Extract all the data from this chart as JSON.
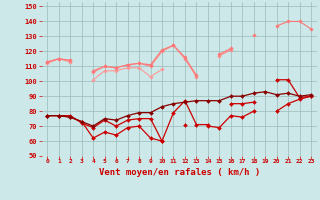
{
  "x": [
    0,
    1,
    2,
    3,
    4,
    5,
    6,
    7,
    8,
    9,
    10,
    11,
    12,
    13,
    14,
    15,
    16,
    17,
    18,
    19,
    20,
    21,
    22,
    23
  ],
  "line1": [
    112,
    115,
    114,
    null,
    101,
    107,
    107,
    109,
    109,
    103,
    108,
    null,
    null,
    null,
    null,
    null,
    null,
    null,
    null,
    null,
    null,
    null,
    null,
    null
  ],
  "line2": [
    113,
    115,
    113,
    null,
    106,
    110,
    109,
    111,
    112,
    110,
    120,
    124,
    115,
    103,
    null,
    117,
    121,
    null,
    null,
    null,
    null,
    null,
    null,
    null
  ],
  "line3": [
    113,
    115,
    114,
    null,
    107,
    110,
    109,
    111,
    112,
    111,
    121,
    124,
    116,
    104,
    null,
    118,
    122,
    null,
    131,
    null,
    137,
    140,
    140,
    135
  ],
  "line4": [
    77,
    77,
    77,
    72,
    69,
    74,
    70,
    74,
    75,
    75,
    60,
    79,
    87,
    71,
    71,
    null,
    85,
    85,
    86,
    null,
    101,
    101,
    89,
    90
  ],
  "line5": [
    77,
    77,
    76,
    73,
    62,
    66,
    64,
    69,
    70,
    62,
    60,
    null,
    71,
    null,
    70,
    69,
    77,
    76,
    80,
    null,
    80,
    85,
    88,
    90
  ],
  "line6": [
    77,
    77,
    76,
    73,
    70,
    75,
    74,
    77,
    79,
    79,
    83,
    85,
    86,
    87,
    87,
    87,
    90,
    90,
    92,
    93,
    91,
    92,
    90,
    91
  ],
  "bg_color": "#cce8e8",
  "grid_color": "#99bbbb",
  "line1_color": "#ff9999",
  "line2_color": "#ff8888",
  "line3_color": "#ff7777",
  "line4_color": "#cc0000",
  "line5_color": "#cc0000",
  "line6_color": "#880000",
  "xlabel": "Vent moyen/en rafales ( km/h )",
  "xlabel_color": "#cc0000",
  "tick_color": "#cc0000",
  "ylim": [
    50,
    153
  ],
  "xlim": [
    -0.5,
    23.5
  ],
  "yticks": [
    50,
    60,
    70,
    80,
    90,
    100,
    110,
    120,
    130,
    140,
    150
  ],
  "xticks": [
    0,
    1,
    2,
    3,
    4,
    5,
    6,
    7,
    8,
    9,
    10,
    11,
    12,
    13,
    14,
    15,
    16,
    17,
    18,
    19,
    20,
    21,
    22,
    23
  ]
}
